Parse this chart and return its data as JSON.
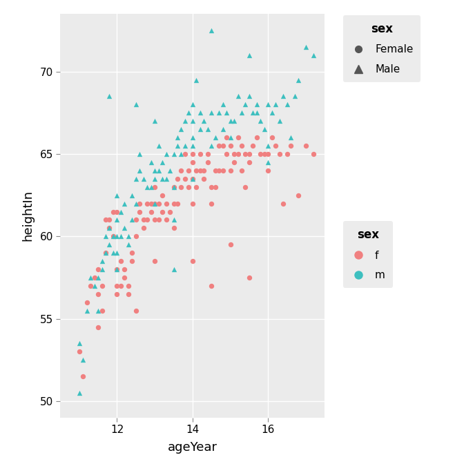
{
  "title": "",
  "xlabel": "ageYear",
  "ylabel": "heightIn",
  "xlim": [
    10.5,
    17.5
  ],
  "ylim": [
    49.0,
    73.5
  ],
  "xticks": [
    12,
    14,
    16
  ],
  "yticks": [
    50,
    55,
    60,
    65,
    70
  ],
  "bg_color": "#EBEBEB",
  "fig_color": "#FFFFFF",
  "grid_color": "white",
  "female_color": "#F08080",
  "male_color": "#3DBFBF",
  "marker_size": 28,
  "legend1_title": "sex",
  "legend1_labels": [
    "Female",
    "Male"
  ],
  "legend2_title": "sex",
  "legend2_labels": [
    "f",
    "m"
  ],
  "female_data": [
    [
      11.0,
      53.0
    ],
    [
      11.1,
      51.5
    ],
    [
      11.2,
      56.0
    ],
    [
      11.3,
      57.0
    ],
    [
      11.4,
      57.5
    ],
    [
      11.5,
      58.0
    ],
    [
      11.5,
      56.5
    ],
    [
      11.6,
      55.5
    ],
    [
      11.6,
      57.0
    ],
    [
      11.7,
      59.0
    ],
    [
      11.7,
      61.0
    ],
    [
      11.8,
      61.0
    ],
    [
      11.8,
      60.5
    ],
    [
      11.9,
      60.0
    ],
    [
      11.9,
      61.5
    ],
    [
      12.0,
      61.5
    ],
    [
      12.0,
      58.0
    ],
    [
      12.0,
      57.0
    ],
    [
      12.0,
      56.5
    ],
    [
      12.1,
      57.0
    ],
    [
      12.1,
      58.5
    ],
    [
      12.2,
      57.5
    ],
    [
      12.2,
      58.0
    ],
    [
      12.3,
      56.5
    ],
    [
      12.3,
      57.0
    ],
    [
      12.4,
      58.5
    ],
    [
      12.4,
      59.0
    ],
    [
      12.5,
      60.0
    ],
    [
      12.5,
      61.0
    ],
    [
      12.6,
      61.5
    ],
    [
      12.6,
      62.0
    ],
    [
      12.7,
      61.0
    ],
    [
      12.7,
      60.5
    ],
    [
      12.8,
      61.0
    ],
    [
      12.8,
      62.0
    ],
    [
      12.9,
      61.5
    ],
    [
      12.9,
      62.0
    ],
    [
      13.0,
      61.0
    ],
    [
      13.0,
      62.0
    ],
    [
      13.0,
      63.0
    ],
    [
      13.1,
      61.0
    ],
    [
      13.1,
      62.0
    ],
    [
      13.2,
      62.5
    ],
    [
      13.2,
      61.5
    ],
    [
      13.3,
      62.0
    ],
    [
      13.3,
      61.0
    ],
    [
      13.4,
      61.5
    ],
    [
      13.5,
      62.0
    ],
    [
      13.5,
      63.0
    ],
    [
      13.6,
      62.0
    ],
    [
      13.6,
      63.5
    ],
    [
      13.7,
      64.0
    ],
    [
      13.7,
      63.0
    ],
    [
      13.8,
      63.5
    ],
    [
      13.8,
      65.0
    ],
    [
      13.9,
      64.0
    ],
    [
      13.9,
      63.0
    ],
    [
      14.0,
      64.5
    ],
    [
      14.0,
      63.5
    ],
    [
      14.0,
      65.0
    ],
    [
      14.1,
      64.0
    ],
    [
      14.1,
      63.0
    ],
    [
      14.2,
      64.0
    ],
    [
      14.2,
      65.0
    ],
    [
      14.3,
      63.5
    ],
    [
      14.3,
      64.0
    ],
    [
      14.4,
      65.0
    ],
    [
      14.4,
      64.5
    ],
    [
      14.5,
      63.0
    ],
    [
      14.5,
      62.0
    ],
    [
      14.6,
      63.0
    ],
    [
      14.6,
      64.0
    ],
    [
      14.7,
      65.5
    ],
    [
      14.7,
      64.0
    ],
    [
      14.8,
      65.5
    ],
    [
      14.8,
      64.0
    ],
    [
      14.9,
      65.0
    ],
    [
      14.9,
      66.0
    ],
    [
      15.0,
      65.5
    ],
    [
      15.0,
      64.0
    ],
    [
      15.1,
      65.0
    ],
    [
      15.1,
      64.5
    ],
    [
      15.2,
      65.0
    ],
    [
      15.2,
      66.0
    ],
    [
      15.3,
      65.5
    ],
    [
      15.3,
      64.0
    ],
    [
      15.4,
      65.0
    ],
    [
      15.4,
      63.0
    ],
    [
      15.5,
      64.5
    ],
    [
      15.5,
      65.0
    ],
    [
      15.6,
      65.5
    ],
    [
      15.7,
      66.0
    ],
    [
      15.8,
      65.0
    ],
    [
      15.9,
      65.0
    ],
    [
      16.0,
      65.0
    ],
    [
      16.0,
      64.0
    ],
    [
      16.1,
      66.0
    ],
    [
      16.2,
      65.5
    ],
    [
      16.3,
      65.0
    ],
    [
      16.4,
      62.0
    ],
    [
      16.5,
      65.0
    ],
    [
      16.6,
      65.5
    ],
    [
      16.8,
      62.5
    ],
    [
      17.0,
      65.5
    ],
    [
      17.2,
      65.0
    ],
    [
      14.0,
      58.5
    ],
    [
      14.5,
      57.0
    ],
    [
      15.0,
      59.5
    ],
    [
      15.5,
      57.5
    ],
    [
      12.5,
      55.5
    ],
    [
      13.0,
      58.5
    ],
    [
      13.5,
      60.5
    ],
    [
      14.0,
      62.0
    ],
    [
      11.5,
      54.5
    ]
  ],
  "male_data": [
    [
      11.0,
      53.5
    ],
    [
      11.1,
      52.5
    ],
    [
      11.2,
      55.5
    ],
    [
      11.3,
      57.5
    ],
    [
      11.4,
      57.0
    ],
    [
      11.5,
      57.5
    ],
    [
      11.5,
      55.5
    ],
    [
      11.6,
      58.0
    ],
    [
      11.6,
      58.5
    ],
    [
      11.7,
      59.0
    ],
    [
      11.7,
      60.0
    ],
    [
      11.8,
      60.5
    ],
    [
      11.8,
      59.5
    ],
    [
      11.9,
      60.0
    ],
    [
      11.9,
      59.0
    ],
    [
      12.0,
      60.0
    ],
    [
      12.0,
      61.0
    ],
    [
      12.0,
      59.0
    ],
    [
      12.0,
      58.0
    ],
    [
      12.1,
      60.0
    ],
    [
      12.1,
      61.5
    ],
    [
      12.2,
      62.0
    ],
    [
      12.2,
      60.5
    ],
    [
      12.3,
      60.0
    ],
    [
      12.3,
      59.5
    ],
    [
      12.4,
      61.0
    ],
    [
      12.4,
      62.5
    ],
    [
      12.5,
      63.5
    ],
    [
      12.5,
      62.0
    ],
    [
      12.6,
      64.0
    ],
    [
      12.6,
      65.0
    ],
    [
      12.7,
      63.5
    ],
    [
      12.8,
      63.0
    ],
    [
      12.9,
      64.5
    ],
    [
      12.9,
      63.0
    ],
    [
      13.0,
      64.0
    ],
    [
      13.0,
      62.0
    ],
    [
      13.0,
      63.5
    ],
    [
      13.1,
      64.0
    ],
    [
      13.1,
      65.5
    ],
    [
      13.2,
      63.5
    ],
    [
      13.2,
      64.5
    ],
    [
      13.3,
      65.0
    ],
    [
      13.3,
      63.5
    ],
    [
      13.4,
      64.0
    ],
    [
      13.5,
      65.0
    ],
    [
      13.5,
      63.0
    ],
    [
      13.5,
      61.0
    ],
    [
      13.6,
      66.0
    ],
    [
      13.6,
      65.5
    ],
    [
      13.7,
      66.5
    ],
    [
      13.7,
      65.0
    ],
    [
      13.8,
      67.0
    ],
    [
      13.8,
      65.5
    ],
    [
      13.9,
      67.5
    ],
    [
      14.0,
      67.0
    ],
    [
      14.0,
      66.0
    ],
    [
      14.0,
      65.5
    ],
    [
      14.0,
      68.0
    ],
    [
      14.1,
      69.5
    ],
    [
      14.2,
      67.5
    ],
    [
      14.2,
      66.5
    ],
    [
      14.3,
      67.0
    ],
    [
      14.4,
      66.5
    ],
    [
      14.5,
      67.5
    ],
    [
      14.5,
      65.5
    ],
    [
      14.6,
      66.0
    ],
    [
      14.7,
      67.5
    ],
    [
      14.8,
      68.0
    ],
    [
      14.8,
      66.5
    ],
    [
      14.9,
      67.5
    ],
    [
      15.0,
      67.0
    ],
    [
      15.0,
      66.0
    ],
    [
      15.1,
      67.0
    ],
    [
      15.2,
      68.5
    ],
    [
      15.3,
      67.5
    ],
    [
      15.4,
      68.0
    ],
    [
      15.5,
      68.5
    ],
    [
      15.6,
      67.5
    ],
    [
      15.7,
      68.0
    ],
    [
      15.8,
      67.0
    ],
    [
      15.9,
      66.5
    ],
    [
      16.0,
      68.0
    ],
    [
      16.1,
      67.5
    ],
    [
      16.2,
      68.0
    ],
    [
      16.3,
      67.0
    ],
    [
      16.4,
      68.5
    ],
    [
      16.5,
      68.0
    ],
    [
      16.6,
      66.0
    ],
    [
      16.7,
      68.5
    ],
    [
      16.8,
      69.5
    ],
    [
      17.0,
      71.5
    ],
    [
      17.2,
      71.0
    ],
    [
      11.8,
      68.5
    ],
    [
      12.5,
      68.0
    ],
    [
      14.5,
      72.5
    ],
    [
      15.5,
      71.0
    ],
    [
      15.7,
      67.5
    ],
    [
      16.0,
      65.5
    ],
    [
      16.0,
      64.5
    ],
    [
      12.0,
      62.5
    ],
    [
      13.5,
      58.0
    ],
    [
      11.0,
      50.5
    ],
    [
      13.0,
      67.0
    ],
    [
      14.0,
      63.5
    ]
  ]
}
